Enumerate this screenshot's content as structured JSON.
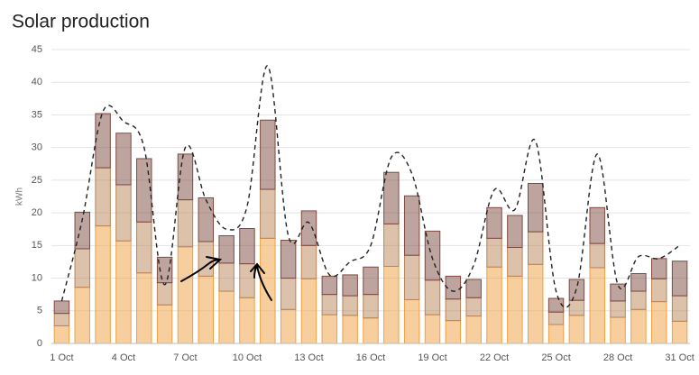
{
  "chart_data": {
    "type": "bar",
    "stacked": true,
    "title": "Solar production",
    "y_label": "kWh",
    "categories": [
      "1 Oct",
      null,
      null,
      "4 Oct",
      null,
      null,
      "7 Oct",
      null,
      null,
      "10 Oct",
      null,
      null,
      "13 Oct",
      null,
      null,
      "16 Oct",
      null,
      null,
      "19 Oct",
      null,
      null,
      "22 Oct",
      null,
      null,
      "25 Oct",
      null,
      null,
      "28 Oct",
      null,
      null,
      "31 Oct"
    ],
    "series": [
      {
        "type": "bar",
        "color": "#f0a040",
        "values": [
          2.7,
          8.6,
          18,
          15.7,
          10.8,
          5.9,
          14.8,
          10.3,
          8,
          7,
          16.1,
          5.2,
          9.9,
          4.4,
          4.3,
          3.9,
          11.8,
          6.7,
          4.4,
          3.5,
          4.2,
          11.7,
          10.3,
          12.1,
          2.9,
          4.3,
          11.6,
          4,
          5.2,
          6.4,
          3.4
        ]
      },
      {
        "type": "bar",
        "color": "#b98458",
        "values": [
          1.9,
          5.9,
          8.9,
          8.6,
          7.8,
          3.4,
          7.2,
          5.3,
          4.3,
          5.2,
          7.5,
          4.8,
          5.1,
          3.1,
          3,
          3.6,
          6.5,
          6.8,
          5.3,
          3.3,
          2.8,
          4.4,
          4.4,
          5,
          1.9,
          2.3,
          3.7,
          2.5,
          2.8,
          3.5,
          3.9
        ]
      },
      {
        "type": "bar",
        "color": "#7e4a40",
        "values": [
          1.9,
          5.6,
          8.3,
          7.9,
          9.7,
          3.9,
          7,
          6.7,
          4.2,
          5.4,
          10.6,
          5.8,
          5.3,
          2.8,
          3.2,
          4.2,
          7.9,
          9.1,
          7.5,
          3.5,
          2.8,
          4.7,
          4.9,
          7.4,
          2.1,
          3.2,
          5.5,
          2.6,
          2.7,
          3.1,
          5.3
        ]
      },
      {
        "type": "line",
        "color": "#222222",
        "dashed": true,
        "values": [
          6.5,
          19,
          35.5,
          34,
          30,
          9,
          30,
          22,
          17.5,
          21,
          42.5,
          16.5,
          18.5,
          10.5,
          12.5,
          15,
          28.5,
          26,
          13,
          8,
          12,
          23.5,
          20.5,
          31,
          8,
          8.5,
          29,
          9,
          13.3,
          13,
          15
        ]
      }
    ],
    "ylim": [
      0,
      45
    ],
    "yticks": [
      0,
      5,
      10,
      15,
      20,
      25,
      30,
      35,
      40,
      45
    ],
    "grid": true
  }
}
